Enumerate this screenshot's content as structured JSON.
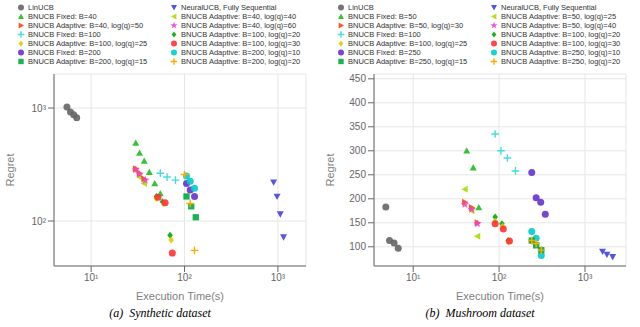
{
  "chart_data": [
    {
      "type": "scatter",
      "title": "(a)  Synthetic dataset",
      "x_label": "Execution Time(s)",
      "y_label": "Regret",
      "log": true,
      "grid": true,
      "legend": "top",
      "xlim": [
        4,
        2000
      ],
      "xticks": [
        {
          "value": 10,
          "label": "10¹"
        },
        {
          "value": 100,
          "label": "10²"
        },
        {
          "value": 1000,
          "label": "10³"
        }
      ],
      "ylim": [
        40,
        2000
      ],
      "yticks": [
        {
          "value": 100,
          "label": "10²"
        },
        {
          "value": 1000,
          "label": "10³"
        }
      ],
      "series": [
        {
          "name": "LinUCB",
          "color": "#666666",
          "marker": "circle",
          "x": [
            5.5,
            6.0,
            6.5,
            7.0
          ],
          "values": [
            1020,
            920,
            870,
            820
          ]
        },
        {
          "name": "NeuralUCB, Fully Sequential",
          "color": "#4444dd",
          "marker": "triangle_down",
          "x": [
            900,
            980,
            1060,
            1150
          ],
          "values": [
            220,
            165,
            115,
            72
          ]
        },
        {
          "name": "BNUCB Fixed: B=40",
          "color": "#22bb22",
          "marker": "triangle_up",
          "x": [
            30,
            33,
            37,
            42,
            48,
            55
          ],
          "values": [
            490,
            400,
            340,
            270,
            215,
            175
          ]
        },
        {
          "name": "BNUCB Adaptive: B=40, log(q)=40",
          "color": "#aadd00",
          "marker": "triangle_left",
          "x": [
            30,
            33,
            37
          ],
          "values": [
            280,
            245,
            215
          ]
        },
        {
          "name": "BNUCB Adaptive: B=40, log(q)=50",
          "color": "#ff4400",
          "marker": "triangle_right",
          "x": [
            30,
            33,
            37
          ],
          "values": [
            290,
            265,
            235
          ]
        },
        {
          "name": "BNUCB Adaptive: B=40, log(q)=60",
          "color": "#ee44cc",
          "marker": "star",
          "x": [
            30,
            33,
            38
          ],
          "values": [
            285,
            260,
            230
          ]
        },
        {
          "name": "BNUCB Fixed: B=100",
          "color": "#44dddd",
          "marker": "plus",
          "x": [
            55,
            65,
            80
          ],
          "values": [
            265,
            245,
            230
          ]
        },
        {
          "name": "BNUCB Adaptive: B=100, log(q)=20",
          "color": "#00aa00",
          "marker": "diamond",
          "x": [
            50,
            58,
            70
          ],
          "values": [
            165,
            148,
            75
          ]
        },
        {
          "name": "BNUCB Adaptive: B=100, log(q)=25",
          "color": "#ddcc00",
          "marker": "diamond",
          "x": [
            50,
            60,
            72
          ],
          "values": [
            158,
            142,
            68
          ]
        },
        {
          "name": "BNUCB Adaptive: B=100, log(q)=30",
          "color": "#ff3333",
          "marker": "circle",
          "x": [
            52,
            62,
            74
          ],
          "values": [
            162,
            145,
            52
          ]
        },
        {
          "name": "BNUCB Fixed: B=200",
          "color": "#6633cc",
          "marker": "circle",
          "x": [
            105,
            115,
            128
          ],
          "values": [
            215,
            188,
            165
          ]
        },
        {
          "name": "BNUCB Adaptive: B=200, log(q)=10",
          "color": "#00cccc",
          "marker": "circle",
          "x": [
            105,
            115,
            128
          ],
          "values": [
            250,
            225,
            195
          ]
        },
        {
          "name": "BNUCB Adaptive: B=200, log(q)=15",
          "color": "#00aa44",
          "marker": "square",
          "x": [
            105,
            118,
            132
          ],
          "values": [
            165,
            135,
            108
          ]
        },
        {
          "name": "BNUCB Adaptive: B=200, log(q)=20",
          "color": "#ffaa00",
          "marker": "plus",
          "x": [
            100,
            115,
            128
          ],
          "values": [
            258,
            143,
            55
          ]
        }
      ]
    },
    {
      "type": "scatter",
      "title": "(b)  Mushroom dataset",
      "x_label": "Execution Time(s)",
      "y_label": "Regret",
      "log": "x",
      "grid": true,
      "legend": "top",
      "xlim": [
        3.5,
        3000
      ],
      "xticks": [
        {
          "value": 10,
          "label": "10¹"
        },
        {
          "value": 100,
          "label": "10²"
        },
        {
          "value": 1000,
          "label": "10³"
        }
      ],
      "ylim": [
        60,
        460
      ],
      "yticks": [
        100,
        150,
        200,
        250,
        300,
        350,
        400,
        450
      ],
      "series": [
        {
          "name": "LinUCB",
          "color": "#666666",
          "marker": "circle",
          "x": [
            4.8,
            5.3,
            6.0,
            6.7
          ],
          "values": [
            183,
            113,
            108,
            97
          ]
        },
        {
          "name": "NeuralUCB, Fully Sequential",
          "color": "#4444dd",
          "marker": "triangle_down",
          "x": [
            1600,
            1800,
            2100
          ],
          "values": [
            90,
            84,
            79
          ]
        },
        {
          "name": "BNUCB Fixed: B=50",
          "color": "#22bb22",
          "marker": "triangle_up",
          "x": [
            42,
            50,
            58
          ],
          "values": [
            300,
            265,
            182
          ]
        },
        {
          "name": "BNUCB Adaptive: B=50, log(q)=25",
          "color": "#aadd00",
          "marker": "triangle_left",
          "x": [
            40,
            48,
            56
          ],
          "values": [
            220,
            175,
            122
          ]
        },
        {
          "name": "BNUCB Adaptive: B=50, log(q)=30",
          "color": "#ff4400",
          "marker": "triangle_right",
          "x": [
            40,
            48,
            56
          ],
          "values": [
            193,
            182,
            150
          ]
        },
        {
          "name": "BNUCB Adaptive: B=50, log(q)=40",
          "color": "#ee44cc",
          "marker": "star",
          "x": [
            40,
            48,
            56
          ],
          "values": [
            188,
            178,
            148
          ]
        },
        {
          "name": "BNUCB Fixed: B=100",
          "color": "#44dddd",
          "marker": "plus",
          "x": [
            90,
            105,
            125,
            155
          ],
          "values": [
            335,
            300,
            285,
            258
          ]
        },
        {
          "name": "BNUCB Adaptive: B=100, log(q)=20",
          "color": "#00aa00",
          "marker": "diamond",
          "x": [
            90,
            108,
            128
          ],
          "values": [
            162,
            148,
            113
          ]
        },
        {
          "name": "BNUCB Adaptive: B=100, log(q)=25",
          "color": "#ddcc00",
          "marker": "diamond",
          "x": [
            90,
            110,
            128
          ],
          "values": [
            153,
            143,
            110
          ]
        },
        {
          "name": "BNUCB Adaptive: B=100, log(q)=30",
          "color": "#ff3333",
          "marker": "circle",
          "x": [
            90,
            112,
            132
          ],
          "values": [
            148,
            137,
            112
          ]
        },
        {
          "name": "BNUCB Fixed: B=250",
          "color": "#6633cc",
          "marker": "circle",
          "x": [
            240,
            270,
            305,
            345
          ],
          "values": [
            255,
            202,
            193,
            168
          ]
        },
        {
          "name": "BNUCB Adaptive: B=250, log(q)=10",
          "color": "#00cccc",
          "marker": "circle",
          "x": [
            240,
            270,
            310
          ],
          "values": [
            132,
            118,
            82
          ]
        },
        {
          "name": "BNUCB Adaptive: B=250, log(q)=15",
          "color": "#00aa44",
          "marker": "square",
          "x": [
            240,
            270,
            310
          ],
          "values": [
            113,
            103,
            93
          ]
        },
        {
          "name": "BNUCB Adaptive: B=250, log(q)=20",
          "color": "#ffaa00",
          "marker": "plus",
          "x": [
            240,
            270,
            310
          ],
          "values": [
            113,
            107,
            93
          ]
        }
      ]
    }
  ]
}
